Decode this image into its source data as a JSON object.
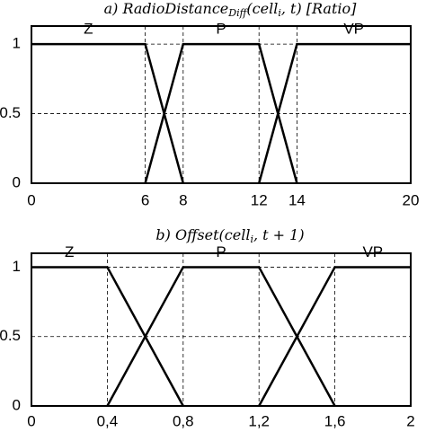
{
  "chart_data": [
    {
      "type": "line",
      "title": [
        "a) RadioDistance",
        "Diff",
        "(cell",
        "i",
        ", t) [Ratio]"
      ],
      "xlim": [
        0,
        20
      ],
      "xticks": [
        0,
        6,
        8,
        12,
        14,
        20
      ],
      "ylim": [
        0,
        1.13
      ],
      "yticks": [
        0,
        0.5,
        1
      ],
      "grid": true,
      "series": [
        {
          "name": "Z",
          "color": "#000000",
          "x": [
            0,
            6,
            8
          ],
          "values": [
            1,
            1,
            0
          ]
        },
        {
          "name": "P",
          "color": "#000000",
          "x": [
            6,
            8,
            12,
            14
          ],
          "values": [
            0,
            1,
            1,
            0
          ]
        },
        {
          "name": "VP",
          "color": "#000000",
          "x": [
            12,
            14,
            20
          ],
          "values": [
            0,
            1,
            1
          ]
        }
      ]
    },
    {
      "type": "line",
      "title": [
        "b) Offset(cell",
        "i",
        ", t + 1)"
      ],
      "xlim": [
        0,
        2
      ],
      "xticks": [
        0,
        {
          "value": 0.4,
          "label": "0,4"
        },
        {
          "value": 0.8,
          "label": "0,8"
        },
        {
          "value": 1.2,
          "label": "1,2"
        },
        {
          "value": 1.6,
          "label": "1,6"
        },
        2
      ],
      "ylim": [
        0,
        1.1
      ],
      "yticks": [
        0,
        0.5,
        1
      ],
      "grid": true,
      "series": [
        {
          "name": "Z",
          "color": "#000000",
          "x": [
            0,
            0.4,
            0.8
          ],
          "values": [
            1,
            1,
            0
          ]
        },
        {
          "name": "P",
          "color": "#000000",
          "x": [
            0.4,
            0.8,
            1.2,
            1.6
          ],
          "values": [
            0,
            1,
            1,
            0
          ]
        },
        {
          "name": "VP",
          "color": "#000000",
          "x": [
            1.2,
            1.6,
            2
          ],
          "values": [
            0,
            1,
            1
          ]
        }
      ]
    }
  ]
}
